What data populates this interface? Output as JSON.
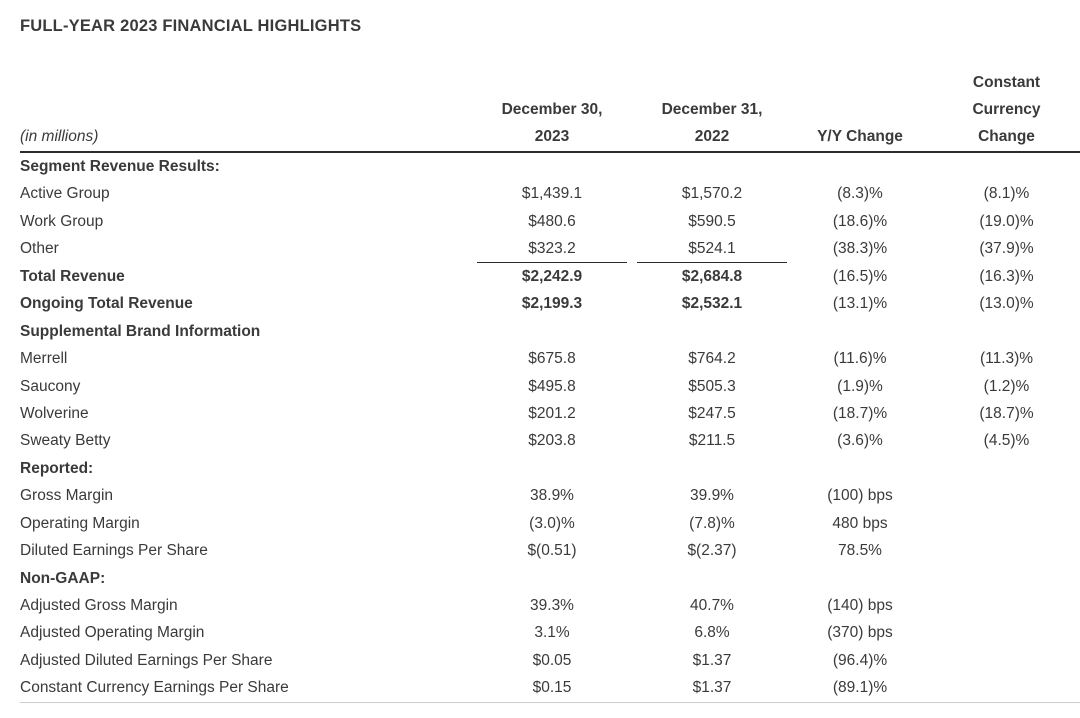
{
  "title": "FULL-YEAR 2023 FINANCIAL HIGHLIGHTS",
  "colors": {
    "text": "#3a3a3a",
    "rule_dark": "#2c2c2c",
    "rule_light": "#cccccc",
    "background": "#ffffff"
  },
  "table": {
    "unit_label": "(in millions)",
    "columns": [
      {
        "id": "dec-30-2023",
        "lines": [
          "December 30,",
          "2023"
        ]
      },
      {
        "id": "dec-31-2022",
        "lines": [
          "December 31,",
          "2022"
        ]
      },
      {
        "id": "yy-change",
        "lines": [
          "Y/Y Change"
        ]
      },
      {
        "id": "constant-currency-change",
        "lines": [
          "Constant",
          "Currency",
          "Change"
        ]
      }
    ],
    "rows": [
      {
        "label": "Segment Revenue Results:",
        "style": "section",
        "values": [
          "",
          "",
          "",
          ""
        ]
      },
      {
        "label": "Active Group",
        "style": "data",
        "values": [
          "$1,439.1",
          "$1,570.2",
          "(8.3)%",
          "(8.1)%"
        ]
      },
      {
        "label": "Work Group",
        "style": "data",
        "values": [
          "$480.6",
          "$590.5",
          "(18.6)%",
          "(19.0)%"
        ]
      },
      {
        "label": "Other",
        "style": "data",
        "rule_after": [
          0,
          1
        ],
        "values": [
          "$323.2",
          "$524.1",
          "(38.3)%",
          "(37.9)%"
        ]
      },
      {
        "label": "Total Revenue",
        "style": "total",
        "values": [
          "$2,242.9",
          "$2,684.8",
          "(16.5)%",
          "(16.3)%"
        ]
      },
      {
        "label": "Ongoing Total Revenue",
        "style": "total",
        "values": [
          "$2,199.3",
          "$2,532.1",
          "(13.1)%",
          "(13.0)%"
        ]
      },
      {
        "label": "Supplemental Brand Information",
        "style": "section",
        "values": [
          "",
          "",
          "",
          ""
        ]
      },
      {
        "label": "Merrell",
        "style": "data",
        "values": [
          "$675.8",
          "$764.2",
          "(11.6)%",
          "(11.3)%"
        ]
      },
      {
        "label": "Saucony",
        "style": "data",
        "values": [
          "$495.8",
          "$505.3",
          "(1.9)%",
          "(1.2)%"
        ]
      },
      {
        "label": "Wolverine",
        "style": "data",
        "values": [
          "$201.2",
          "$247.5",
          "(18.7)%",
          "(18.7)%"
        ]
      },
      {
        "label": "Sweaty Betty",
        "style": "data",
        "values": [
          "$203.8",
          "$211.5",
          "(3.6)%",
          "(4.5)%"
        ]
      },
      {
        "label": "Reported:",
        "style": "section",
        "values": [
          "",
          "",
          "",
          ""
        ]
      },
      {
        "label": "Gross Margin",
        "style": "data",
        "values": [
          "38.9%",
          "39.9%",
          "(100) bps",
          ""
        ]
      },
      {
        "label": "Operating Margin",
        "style": "data",
        "values": [
          "(3.0)%",
          "(7.8)%",
          "480 bps",
          ""
        ]
      },
      {
        "label": "Diluted Earnings Per Share",
        "style": "data",
        "values": [
          "$(0.51)",
          "$(2.37)",
          "78.5%",
          ""
        ]
      },
      {
        "label": "Non-GAAP:",
        "style": "section",
        "values": [
          "",
          "",
          "",
          ""
        ]
      },
      {
        "label": "Adjusted Gross Margin",
        "style": "data",
        "values": [
          "39.3%",
          "40.7%",
          "(140) bps",
          ""
        ]
      },
      {
        "label": "Adjusted Operating Margin",
        "style": "data",
        "values": [
          "3.1%",
          "6.8%",
          "(370) bps",
          ""
        ]
      },
      {
        "label": "Adjusted Diluted Earnings Per Share",
        "style": "data",
        "values": [
          "$0.05",
          "$1.37",
          "(96.4)%",
          ""
        ]
      },
      {
        "label": "Constant Currency Earnings Per Share",
        "style": "data",
        "values": [
          "$0.15",
          "$1.37",
          "(89.1)%",
          ""
        ]
      }
    ]
  }
}
